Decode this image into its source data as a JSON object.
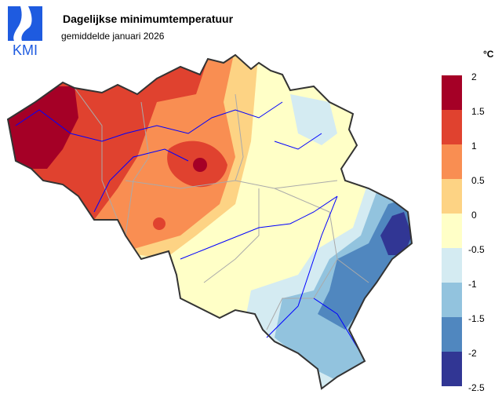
{
  "logo_text": "KMI",
  "title": "Dagelijkse minimumtemperatuur",
  "subtitle": "gemiddelde januari 2026",
  "legend": {
    "unit": "°C",
    "ticks": [
      "2",
      "1.5",
      "1",
      "0.5",
      "0",
      "-0.5",
      "-1",
      "-1.5",
      "-2",
      "-2.5"
    ],
    "colors": [
      "#a50026",
      "#e0422f",
      "#f98e52",
      "#fdd384",
      "#ffffc7",
      "#d4ebf2",
      "#92c3de",
      "#5087bf",
      "#313694"
    ]
  },
  "colors": {
    "border": "#333333",
    "rivers": "#0000ff",
    "provinces": "#aaaaaa",
    "logo": "#1e5be0"
  }
}
